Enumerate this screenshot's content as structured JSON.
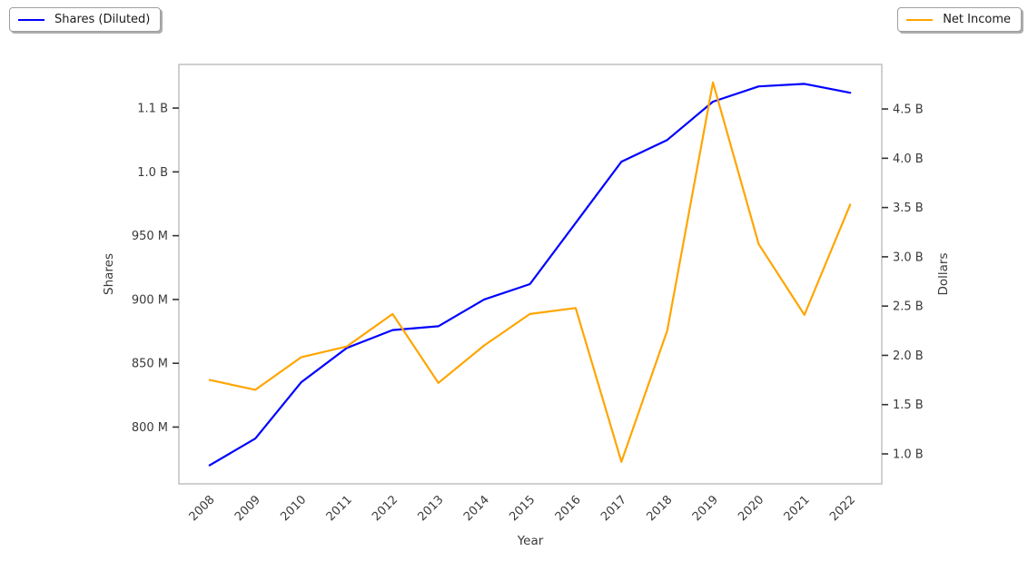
{
  "chart_data": {
    "type": "line",
    "x": [
      2008,
      2009,
      2010,
      2011,
      2012,
      2013,
      2014,
      2015,
      2016,
      2017,
      2018,
      2019,
      2020,
      2021,
      2022
    ],
    "x_tick_labels": [
      "2008",
      "2009",
      "2010",
      "2011",
      "2012",
      "2013",
      "2014",
      "2015",
      "2016",
      "2017",
      "2018",
      "2019",
      "2020",
      "2021",
      "2022"
    ],
    "series": [
      {
        "name": "Shares (Diluted)",
        "axis": "left",
        "unit": "millions of shares",
        "color": "#0000ff",
        "values": [
          770,
          791,
          835,
          862,
          876,
          879,
          900,
          912,
          960,
          1008,
          1025,
          1055,
          1067,
          1069,
          1062
        ]
      },
      {
        "name": "Net Income",
        "axis": "right",
        "unit": "billions of dollars",
        "color": "#ffa500",
        "values": [
          1.75,
          1.65,
          1.98,
          2.09,
          2.42,
          1.72,
          2.1,
          2.42,
          2.48,
          0.92,
          2.25,
          4.77,
          3.13,
          2.41,
          3.53
        ]
      }
    ],
    "xlabel": "Year",
    "ylabel_left": "Shares",
    "ylabel_right": "Dollars",
    "left_ticks": [
      {
        "value": 800,
        "label": "800 M"
      },
      {
        "value": 850,
        "label": "850 M"
      },
      {
        "value": 900,
        "label": "900 M"
      },
      {
        "value": 950,
        "label": "950 M"
      },
      {
        "value": 1000,
        "label": "1.0 B"
      },
      {
        "value": 1050,
        "label": "1.1 B"
      }
    ],
    "right_ticks": [
      {
        "value": 1.0,
        "label": "1.0 B"
      },
      {
        "value": 1.5,
        "label": "1.5 B"
      },
      {
        "value": 2.0,
        "label": "2.0 B"
      },
      {
        "value": 2.5,
        "label": "2.5 B"
      },
      {
        "value": 3.0,
        "label": "3.0 B"
      },
      {
        "value": 3.5,
        "label": "3.5 B"
      },
      {
        "value": 4.0,
        "label": "4.0 B"
      },
      {
        "value": 4.5,
        "label": "4.5 B"
      }
    ],
    "xlim": [
      2007.33,
      2022.69
    ],
    "ylim_left_millions": [
      755.5,
      1084.2
    ],
    "ylim_right_billions": [
      0.696,
      4.952
    ],
    "grid": false,
    "legend_position": "two boxes, figure top-left and top-right",
    "colors": {
      "frame": "#cbcbcb",
      "tick_text": "#3a3a3a",
      "tick_mark": "#333333"
    }
  }
}
